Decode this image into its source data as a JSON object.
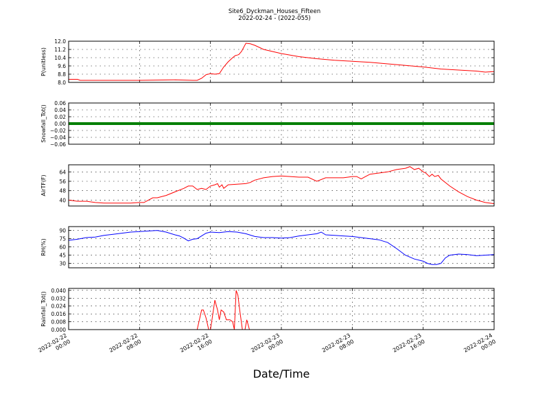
{
  "figure": {
    "title_line1": "Site6_Dyckman_Houses_Fifteen",
    "title_line2": "2022-02-24 - (2022-055)",
    "xlabel": "Date/Time"
  },
  "colors": {
    "red": "#ff0000",
    "green": "#007f00",
    "blue": "#0000ff"
  },
  "chart_data": [
    {
      "type": "line",
      "ylabel": "P(unitless)",
      "ylim": [
        8.0,
        12.0
      ],
      "yticks": [
        "8.0",
        "8.8",
        "9.6",
        "10.4",
        "11.2",
        "12.0"
      ],
      "xticks": [
        [
          "2022-02-22",
          "00:00"
        ],
        [
          "2022-02-22",
          "08:00"
        ],
        [
          "2022-02-22",
          "16:00"
        ],
        [
          "2022-02-23",
          "00:00"
        ],
        [
          "2022-02-23",
          "08:00"
        ],
        [
          "2022-02-23",
          "16:00"
        ],
        [
          "2022-02-24",
          "00:00"
        ]
      ],
      "xlim_hours": [
        0,
        48
      ],
      "grid": true,
      "series": [
        {
          "color": "red",
          "x": [
            0,
            1.0,
            1.3,
            3.0,
            8.0,
            12.0,
            14.0,
            14.5,
            15.0,
            15.5,
            16.0,
            16.5,
            17.0,
            17.5,
            18.0,
            18.5,
            18.8,
            19.0,
            19.2,
            19.5,
            20.0,
            20.5,
            21.0,
            22.0,
            24.0,
            26.0,
            28.0,
            30.0,
            32.0,
            34.0,
            36.0,
            38.0,
            40.0,
            42.0,
            44.0,
            46.0,
            47.0,
            48.0
          ],
          "y": [
            8.3,
            8.3,
            8.2,
            8.2,
            8.2,
            8.25,
            8.2,
            8.2,
            8.4,
            8.75,
            8.85,
            8.8,
            8.85,
            9.5,
            10.0,
            10.4,
            10.6,
            10.65,
            10.7,
            11.0,
            11.8,
            11.75,
            11.6,
            11.2,
            10.8,
            10.5,
            10.3,
            10.15,
            10.05,
            9.95,
            9.8,
            9.65,
            9.5,
            9.3,
            9.2,
            9.1,
            9.0,
            9.05
          ]
        }
      ]
    },
    {
      "type": "line",
      "ylabel": "Snowfall_Tot()",
      "ylim": [
        -0.06,
        0.06
      ],
      "yticks": [
        "−0.06",
        "−0.04",
        "−0.02",
        "0.00",
        "0.02",
        "0.04",
        "0.06"
      ],
      "xlim_hours": [
        0,
        48
      ],
      "grid": true,
      "series": [
        {
          "color": "green",
          "x": [
            0,
            48
          ],
          "y": [
            0.0,
            0.0
          ]
        }
      ]
    },
    {
      "type": "line",
      "ylabel": "AirTF(F)",
      "ylim": [
        35,
        70
      ],
      "yticks": [
        "40",
        "48",
        "56",
        "64"
      ],
      "xlim_hours": [
        0,
        48
      ],
      "grid": true,
      "series": [
        {
          "color": "red",
          "x": [
            0,
            1.0,
            2.0,
            3.0,
            4.0,
            5.0,
            6.0,
            7.0,
            8.0,
            8.5,
            9.0,
            9.5,
            10.0,
            11.0,
            12.0,
            13.0,
            13.5,
            14.0,
            14.5,
            15.0,
            15.5,
            16.0,
            16.5,
            16.8,
            17.0,
            17.3,
            17.5,
            18.0,
            19.0,
            20.0,
            20.5,
            21.0,
            22.0,
            23.0,
            24.0,
            25.0,
            26.0,
            27.0,
            28.0,
            29.0,
            30.0,
            31.0,
            32.0,
            32.5,
            33.0,
            33.5,
            34.0,
            35.0,
            36.0,
            37.0,
            38.0,
            38.5,
            39.0,
            39.5,
            40.0,
            40.3,
            40.7,
            41.0,
            41.3,
            41.7,
            42.0,
            43.0,
            44.0,
            45.0,
            46.0,
            47.0,
            48.0
          ],
          "y": [
            40,
            39,
            39,
            38,
            37.5,
            37.5,
            37.5,
            37.5,
            38,
            38,
            40,
            42,
            42,
            44,
            47,
            50,
            52,
            52,
            49,
            50,
            49,
            52,
            53,
            54,
            51,
            53,
            50,
            53,
            53.5,
            54,
            55,
            57,
            59,
            60,
            60.5,
            60,
            59.5,
            59.5,
            56,
            59,
            59,
            59,
            60,
            60,
            58,
            60,
            62,
            63,
            64,
            66,
            67,
            68.5,
            66,
            67,
            64,
            63,
            60,
            62,
            60,
            61,
            58,
            52,
            47,
            43,
            40,
            38,
            37
          ]
        }
      ]
    },
    {
      "type": "line",
      "ylabel": "RH(%)",
      "ylim": [
        22,
        97
      ],
      "yticks": [
        "30",
        "45",
        "60",
        "75",
        "90"
      ],
      "xlim_hours": [
        0,
        48
      ],
      "grid": true,
      "series": [
        {
          "color": "blue",
          "x": [
            0,
            1.0,
            2.0,
            3.0,
            4.0,
            5.0,
            6.0,
            7.0,
            8.0,
            9.0,
            10.0,
            11.0,
            12.0,
            12.5,
            13.0,
            13.5,
            14.0,
            14.5,
            15.0,
            15.5,
            16.0,
            17.0,
            18.0,
            19.0,
            20.0,
            21.0,
            22.0,
            23.0,
            24.0,
            25.0,
            26.0,
            27.0,
            28.0,
            28.5,
            29.0,
            30.0,
            31.0,
            32.0,
            33.0,
            34.0,
            35.0,
            36.0,
            37.0,
            38.0,
            39.0,
            40.0,
            40.5,
            41.0,
            41.5,
            42.0,
            42.5,
            43.0,
            44.0,
            45.0,
            46.0,
            47.0,
            48.0
          ],
          "y": [
            72,
            74,
            77,
            78,
            81,
            83,
            85,
            87,
            88,
            89,
            90,
            87,
            82,
            80,
            76,
            71,
            74,
            75,
            80,
            85,
            87,
            86,
            88,
            87,
            84,
            79,
            77,
            77,
            76,
            77,
            80,
            82,
            84,
            87,
            82,
            81,
            80,
            79,
            77,
            75,
            73,
            68,
            57,
            45,
            38,
            34,
            30,
            28,
            28,
            30,
            40,
            45,
            47,
            46,
            44,
            45,
            46
          ]
        }
      ]
    },
    {
      "type": "line",
      "ylabel": "Rainfall_Tot()",
      "ylim": [
        0,
        0.042
      ],
      "yticks": [
        "0.000",
        "0.008",
        "0.016",
        "0.024",
        "0.032",
        "0.040"
      ],
      "xlim_hours": [
        0,
        48
      ],
      "grid": true,
      "series": [
        {
          "color": "red",
          "x": [
            0,
            14.5,
            14.8,
            15.0,
            15.2,
            15.5,
            15.8,
            16.0,
            16.2,
            16.5,
            16.8,
            17.0,
            17.2,
            17.5,
            17.8,
            18.2,
            18.5,
            18.7,
            18.9,
            19.1,
            19.3,
            19.6,
            19.9,
            20.1,
            20.4,
            20.7,
            21.0,
            48.0
          ],
          "y": [
            0,
            0,
            0.012,
            0.02,
            0.02,
            0.012,
            0,
            0,
            0.012,
            0.03,
            0.02,
            0.01,
            0.02,
            0.018,
            0.01,
            0.01,
            0.008,
            0,
            0.04,
            0.035,
            0.02,
            0,
            0,
            0.01,
            0,
            0,
            0,
            0
          ]
        }
      ]
    }
  ]
}
